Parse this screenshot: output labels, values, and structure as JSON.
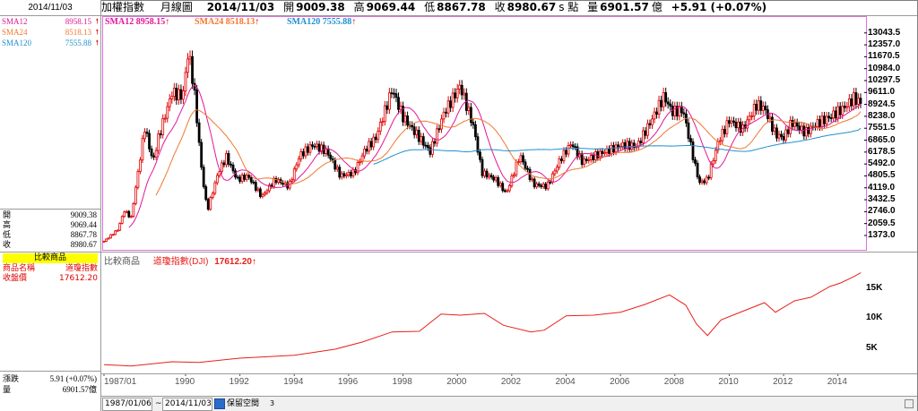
{
  "left_panel": {
    "date": "2014/11/03",
    "sma": [
      {
        "label": "SMA12",
        "value": "8958.15",
        "color": "#e0189a"
      },
      {
        "label": "SMA24",
        "value": "8518.13",
        "color": "#f07830"
      },
      {
        "label": "SMA120",
        "value": "7555.88",
        "color": "#2090d0"
      }
    ],
    "ohlc": [
      {
        "k": "開",
        "v": "9009.38"
      },
      {
        "k": "高",
        "v": "9069.44"
      },
      {
        "k": "低",
        "v": "8867.78"
      },
      {
        "k": "收",
        "v": "8980.67"
      }
    ],
    "compare": {
      "title": "比較商品",
      "name_label": "商品名稱",
      "name_value": "道瓊指數",
      "close_label": "收盤價",
      "close_value": "17612.20"
    },
    "change": {
      "k": "漲跌",
      "v": "5.91 (+0.07%)"
    },
    "volume": {
      "k": "量",
      "v": "6901.57億"
    }
  },
  "header": {
    "name": "加權指數",
    "period": "月線圖",
    "date": "2014/11/03",
    "open_label": "開",
    "open": "9009.38",
    "high_label": "高",
    "high": "9069.44",
    "low_label": "低",
    "low": "8867.78",
    "close_label": "收",
    "close": "8980.67",
    "unit": "s 點",
    "vol_label": "量",
    "vol": "6901.57",
    "vol_unit": "億",
    "change": "+5.91 (+0.07%)"
  },
  "legend": {
    "sma12": "SMA12 8958.15",
    "sma24": "SMA24 8518.13",
    "sma120": "SMA120 7555.88",
    "arrow": "↑"
  },
  "sub_chart": {
    "title": "比較商品",
    "series_label": "道瓊指數(DJI)",
    "series_value": "17612.20",
    "arrow": "↑"
  },
  "status_bar": {
    "from": "1987/01/06",
    "tilde": "~",
    "to": "2014/11/03",
    "btn": "保留空間",
    "num": "3"
  },
  "chart_data": [
    {
      "type": "candlestick",
      "title": "加權指數 月線圖",
      "y_ticks": [
        13043.5,
        12357.0,
        11670.5,
        10984.0,
        10297.5,
        9611.0,
        8924.5,
        8238.0,
        7551.5,
        6865.0,
        6178.5,
        5492.0,
        4805.5,
        4119.0,
        3432.5,
        2746.0,
        2059.5,
        1373.0
      ],
      "ylim": [
        700,
        13600
      ],
      "x_ticks": [
        "1987/01",
        "1990",
        "1992",
        "1994",
        "1996",
        "1998",
        "2000",
        "2002",
        "2004",
        "2006",
        "2008",
        "2010",
        "2012",
        "2014"
      ],
      "xlim": [
        1987.0,
        2014.9
      ],
      "series": [
        {
          "name": "SMA12",
          "color": "#e0189a",
          "last": 8958.15
        },
        {
          "name": "SMA24",
          "color": "#f07830",
          "last": 8518.13
        },
        {
          "name": "SMA120",
          "color": "#2090d0",
          "last": 7555.88
        }
      ],
      "points": [
        {
          "t": 1987.0,
          "c": 1040
        },
        {
          "t": 1987.5,
          "c": 1700
        },
        {
          "t": 1987.75,
          "c": 2800
        },
        {
          "t": 1988.0,
          "c": 2400
        },
        {
          "t": 1988.5,
          "c": 7600
        },
        {
          "t": 1988.8,
          "c": 5600
        },
        {
          "t": 1989.0,
          "c": 7000
        },
        {
          "t": 1989.5,
          "c": 9600
        },
        {
          "t": 1989.9,
          "c": 9400
        },
        {
          "t": 1990.1,
          "c": 12000
        },
        {
          "t": 1990.3,
          "c": 10000
        },
        {
          "t": 1990.6,
          "c": 5000
        },
        {
          "t": 1990.8,
          "c": 2800
        },
        {
          "t": 1991.2,
          "c": 5000
        },
        {
          "t": 1991.5,
          "c": 5900
        },
        {
          "t": 1991.9,
          "c": 4600
        },
        {
          "t": 1992.3,
          "c": 4800
        },
        {
          "t": 1992.8,
          "c": 3600
        },
        {
          "t": 1993.3,
          "c": 4600
        },
        {
          "t": 1993.8,
          "c": 4200
        },
        {
          "t": 1994.2,
          "c": 6000
        },
        {
          "t": 1994.7,
          "c": 6600
        },
        {
          "t": 1995.2,
          "c": 6200
        },
        {
          "t": 1995.7,
          "c": 4800
        },
        {
          "t": 1996.2,
          "c": 5000
        },
        {
          "t": 1996.6,
          "c": 6300
        },
        {
          "t": 1997.0,
          "c": 7000
        },
        {
          "t": 1997.6,
          "c": 9800
        },
        {
          "t": 1998.0,
          "c": 8200
        },
        {
          "t": 1998.6,
          "c": 7000
        },
        {
          "t": 1999.0,
          "c": 6200
        },
        {
          "t": 1999.5,
          "c": 8400
        },
        {
          "t": 2000.1,
          "c": 10000
        },
        {
          "t": 2000.6,
          "c": 7600
        },
        {
          "t": 2000.9,
          "c": 5000
        },
        {
          "t": 2001.4,
          "c": 4600
        },
        {
          "t": 2001.8,
          "c": 3800
        },
        {
          "t": 2002.3,
          "c": 6000
        },
        {
          "t": 2002.8,
          "c": 4300
        },
        {
          "t": 2003.3,
          "c": 4200
        },
        {
          "t": 2003.8,
          "c": 5800
        },
        {
          "t": 2004.2,
          "c": 6700
        },
        {
          "t": 2004.6,
          "c": 5600
        },
        {
          "t": 2005.1,
          "c": 6000
        },
        {
          "t": 2005.6,
          "c": 6300
        },
        {
          "t": 2006.1,
          "c": 6600
        },
        {
          "t": 2006.6,
          "c": 6500
        },
        {
          "t": 2007.1,
          "c": 7900
        },
        {
          "t": 2007.6,
          "c": 9400
        },
        {
          "t": 2007.9,
          "c": 8500
        },
        {
          "t": 2008.3,
          "c": 8600
        },
        {
          "t": 2008.7,
          "c": 5700
        },
        {
          "t": 2008.9,
          "c": 4400
        },
        {
          "t": 2009.2,
          "c": 4600
        },
        {
          "t": 2009.6,
          "c": 6800
        },
        {
          "t": 2010.0,
          "c": 8000
        },
        {
          "t": 2010.5,
          "c": 7500
        },
        {
          "t": 2011.0,
          "c": 8900
        },
        {
          "t": 2011.3,
          "c": 8700
        },
        {
          "t": 2011.7,
          "c": 7200
        },
        {
          "t": 2012.0,
          "c": 7000
        },
        {
          "t": 2012.3,
          "c": 7900
        },
        {
          "t": 2012.8,
          "c": 7300
        },
        {
          "t": 2013.2,
          "c": 7800
        },
        {
          "t": 2013.7,
          "c": 8200
        },
        {
          "t": 2014.2,
          "c": 8700
        },
        {
          "t": 2014.6,
          "c": 9300
        },
        {
          "t": 2014.84,
          "c": 8980.67
        }
      ]
    },
    {
      "type": "line",
      "title": "道瓊指數(DJI)",
      "y_ticks": [
        15000,
        10000,
        5000
      ],
      "y_tick_labels": [
        "15K",
        "10K",
        "5K"
      ],
      "ylim": [
        1500,
        19500
      ],
      "series": [
        {
          "name": "道瓊指數(DJI)",
          "color": "#e8201a",
          "points": [
            {
              "t": 1987.0,
              "v": 2200
            },
            {
              "t": 1988.0,
              "v": 2000
            },
            {
              "t": 1989.5,
              "v": 2700
            },
            {
              "t": 1990.5,
              "v": 2600
            },
            {
              "t": 1992.0,
              "v": 3300
            },
            {
              "t": 1994.0,
              "v": 3800
            },
            {
              "t": 1995.5,
              "v": 4800
            },
            {
              "t": 1996.5,
              "v": 6000
            },
            {
              "t": 1997.6,
              "v": 7700
            },
            {
              "t": 1998.6,
              "v": 7800
            },
            {
              "t": 1999.4,
              "v": 10700
            },
            {
              "t": 2000.1,
              "v": 10500
            },
            {
              "t": 2001.0,
              "v": 10800
            },
            {
              "t": 2001.7,
              "v": 8800
            },
            {
              "t": 2002.7,
              "v": 7700
            },
            {
              "t": 2003.2,
              "v": 8000
            },
            {
              "t": 2004.0,
              "v": 10400
            },
            {
              "t": 2005.0,
              "v": 10500
            },
            {
              "t": 2006.0,
              "v": 11000
            },
            {
              "t": 2006.9,
              "v": 12300
            },
            {
              "t": 2007.8,
              "v": 13900
            },
            {
              "t": 2008.4,
              "v": 12200
            },
            {
              "t": 2008.8,
              "v": 9000
            },
            {
              "t": 2009.2,
              "v": 7100
            },
            {
              "t": 2009.7,
              "v": 9700
            },
            {
              "t": 2010.3,
              "v": 10800
            },
            {
              "t": 2011.3,
              "v": 12600
            },
            {
              "t": 2011.7,
              "v": 11000
            },
            {
              "t": 2012.4,
              "v": 12900
            },
            {
              "t": 2013.0,
              "v": 13500
            },
            {
              "t": 2013.7,
              "v": 15300
            },
            {
              "t": 2014.1,
              "v": 15900
            },
            {
              "t": 2014.6,
              "v": 17000
            },
            {
              "t": 2014.84,
              "v": 17612.2
            }
          ]
        }
      ]
    }
  ]
}
